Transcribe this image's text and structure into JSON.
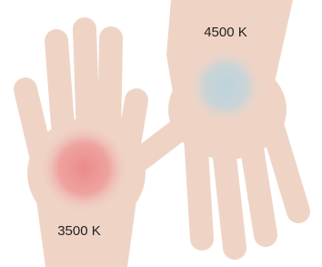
{
  "labels": {
    "warm": "3500 K",
    "cool": "4500 K"
  }
}
